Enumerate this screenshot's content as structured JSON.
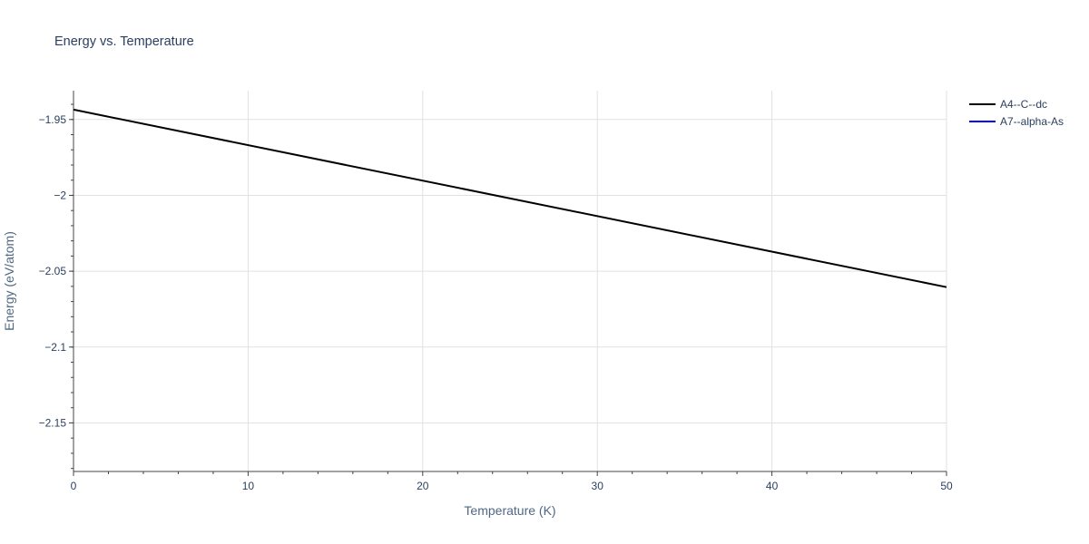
{
  "chart_data": {
    "type": "line",
    "title": "Energy vs. Temperature",
    "xlabel": "Temperature (K)",
    "ylabel": "Energy (eV/atom)",
    "xlim": [
      0,
      50
    ],
    "ylim": [
      -2.182,
      -1.931
    ],
    "x_ticks": [
      0,
      10,
      20,
      30,
      40,
      50
    ],
    "y_ticks": [
      -1.95,
      -2,
      -2.05,
      -2.1,
      -2.15
    ],
    "x_tick_labels": [
      "0",
      "10",
      "20",
      "30",
      "40",
      "50"
    ],
    "y_tick_labels": [
      "−1.95",
      "−2",
      "−2.05",
      "−2.1",
      "−2.15"
    ],
    "grid": true,
    "legend_position": "top-right",
    "series": [
      {
        "name": "A4--C--dc",
        "color": "#000000",
        "x": [
          0,
          50
        ],
        "y": [
          -1.9435,
          -2.0605
        ]
      },
      {
        "name": "A7--alpha-As",
        "color": "#0000ff",
        "x": [],
        "y": []
      }
    ]
  }
}
